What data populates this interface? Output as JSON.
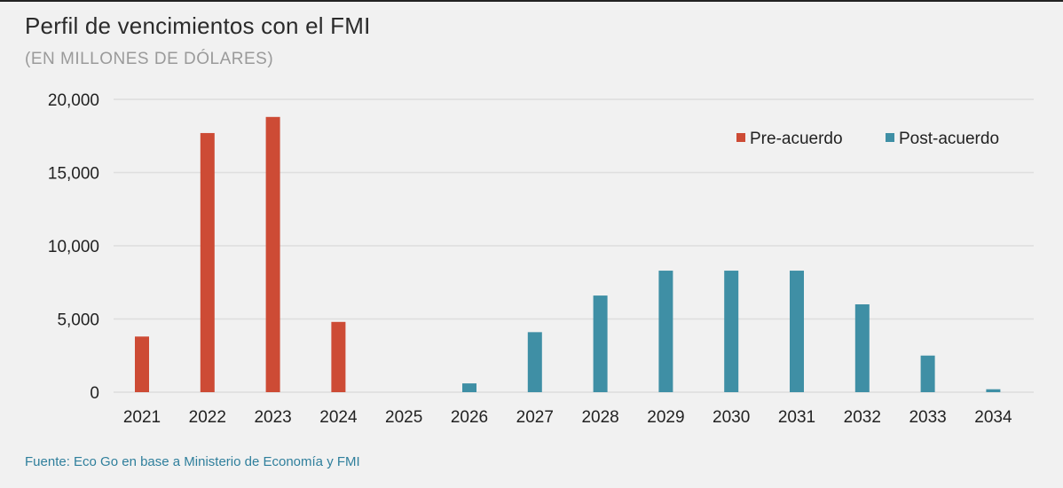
{
  "title": "Perfil de vencimientos con el FMI",
  "subtitle": "(EN MILLONES DE DÓLARES)",
  "source": "Fuente: Eco Go en base a Ministerio de Economía y FMI",
  "colors": {
    "pre": "#cd4b35",
    "post": "#3f8fa5",
    "grid": "#dedede",
    "background": "#f1f1f1"
  },
  "chart_data": {
    "type": "bar",
    "title": "Perfil de vencimientos con el FMI",
    "subtitle": "(EN MILLONES DE DÓLARES)",
    "categories": [
      "2021",
      "2022",
      "2023",
      "2024",
      "2025",
      "2026",
      "2027",
      "2028",
      "2029",
      "2030",
      "2031",
      "2032",
      "2033",
      "2034"
    ],
    "series": [
      {
        "name": "Pre-acuerdo",
        "color": "#cd4b35",
        "values": [
          3800,
          17700,
          18800,
          4800,
          0,
          0,
          0,
          0,
          0,
          0,
          0,
          0,
          0,
          0
        ]
      },
      {
        "name": "Post-acuerdo",
        "color": "#3f8fa5",
        "values": [
          0,
          0,
          0,
          0,
          0,
          600,
          4100,
          6600,
          8300,
          8300,
          8300,
          6000,
          2500,
          200
        ]
      }
    ],
    "yticks": [
      "20,000",
      "15,000",
      "10,000",
      "5,000",
      "0"
    ],
    "ytick_values": [
      20000,
      15000,
      10000,
      5000,
      0
    ],
    "ylim": [
      0,
      20000
    ],
    "grid": true,
    "legend_position": "top-right"
  }
}
